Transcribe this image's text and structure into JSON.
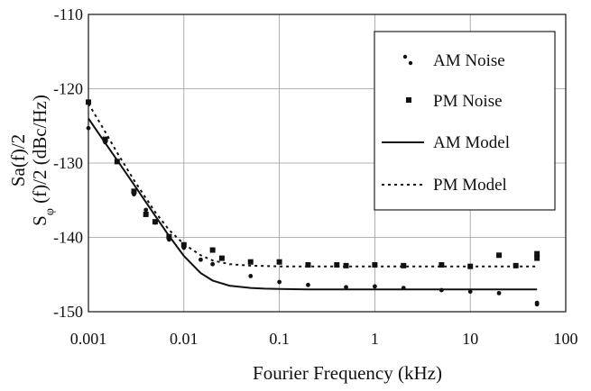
{
  "chart_data": {
    "type": "scatter",
    "xlabel": "Fourier Frequency (kHz)",
    "ylabel_line1": "Sa(f)/2",
    "ylabel_line2_main": "S",
    "ylabel_line2_sub": "φ",
    "ylabel_line2_rest": " (f)/2  (dBc/Hz)",
    "xscale": "log",
    "xlim": [
      0.001,
      100
    ],
    "ylim": [
      -150,
      -110
    ],
    "xticks": [
      0.001,
      0.01,
      0.1,
      1,
      10,
      100
    ],
    "xtick_labels": [
      "0.001",
      "0.01",
      "0.1",
      "1",
      "10",
      "100"
    ],
    "yticks": [
      -150,
      -140,
      -130,
      -120,
      -110
    ],
    "ytick_labels": [
      "-150",
      "-140",
      "-130",
      "-120",
      "-110"
    ],
    "grid": true,
    "legend_position": "top-right",
    "series": [
      {
        "name": "AM Noise",
        "kind": "points",
        "marker": "dot",
        "x": [
          0.001,
          0.0015,
          0.002,
          0.003,
          0.004,
          0.005,
          0.007,
          0.01,
          0.015,
          0.02,
          0.05,
          0.1,
          0.2,
          0.5,
          1,
          2,
          5,
          10,
          20,
          50,
          50
        ],
        "y": [
          -125.3,
          -127.2,
          -129.8,
          -134.2,
          -136.3,
          -138.0,
          -140.3,
          -141.4,
          -143.0,
          -143.6,
          -145.2,
          -146.0,
          -146.4,
          -146.7,
          -146.6,
          -146.8,
          -147.1,
          -147.3,
          -147.5,
          -148.8,
          -149.0
        ]
      },
      {
        "name": "PM Noise",
        "kind": "points",
        "marker": "square",
        "x": [
          0.001,
          0.0015,
          0.002,
          0.003,
          0.004,
          0.005,
          0.007,
          0.01,
          0.02,
          0.025,
          0.05,
          0.1,
          0.2,
          0.4,
          0.5,
          1,
          2,
          5,
          10,
          20,
          30,
          50,
          50
        ],
        "y": [
          -121.8,
          -126.8,
          -129.8,
          -133.8,
          -136.9,
          -137.9,
          -139.9,
          -141.0,
          -141.7,
          -142.8,
          -143.3,
          -143.3,
          -143.7,
          -143.7,
          -143.8,
          -143.7,
          -143.8,
          -143.7,
          -143.9,
          -142.4,
          -143.8,
          -142.2,
          -142.8
        ]
      },
      {
        "name": "AM Model",
        "kind": "line",
        "style": "solid",
        "x": [
          0.001,
          0.0015,
          0.002,
          0.003,
          0.005,
          0.007,
          0.01,
          0.015,
          0.02,
          0.03,
          0.05,
          0.07,
          0.1,
          0.2,
          0.5,
          1,
          2,
          5,
          10,
          20,
          50
        ],
        "y": [
          -124.0,
          -127.3,
          -129.6,
          -132.9,
          -137.1,
          -139.8,
          -142.5,
          -144.8,
          -145.8,
          -146.5,
          -146.8,
          -146.9,
          -146.95,
          -147.0,
          -147.0,
          -147.0,
          -147.0,
          -147.0,
          -147.0,
          -147.0,
          -147.0
        ]
      },
      {
        "name": "PM Model",
        "kind": "line",
        "style": "dotted",
        "x": [
          0.001,
          0.0015,
          0.002,
          0.003,
          0.005,
          0.007,
          0.01,
          0.015,
          0.02,
          0.03,
          0.05,
          0.1,
          0.2,
          0.5,
          1,
          2,
          5,
          10,
          20,
          50
        ],
        "y": [
          -122.0,
          -125.8,
          -128.6,
          -132.3,
          -136.6,
          -139.0,
          -140.9,
          -142.4,
          -143.1,
          -143.6,
          -143.8,
          -143.9,
          -143.9,
          -143.9,
          -143.9,
          -143.9,
          -143.9,
          -143.9,
          -143.9,
          -143.9
        ]
      }
    ]
  }
}
